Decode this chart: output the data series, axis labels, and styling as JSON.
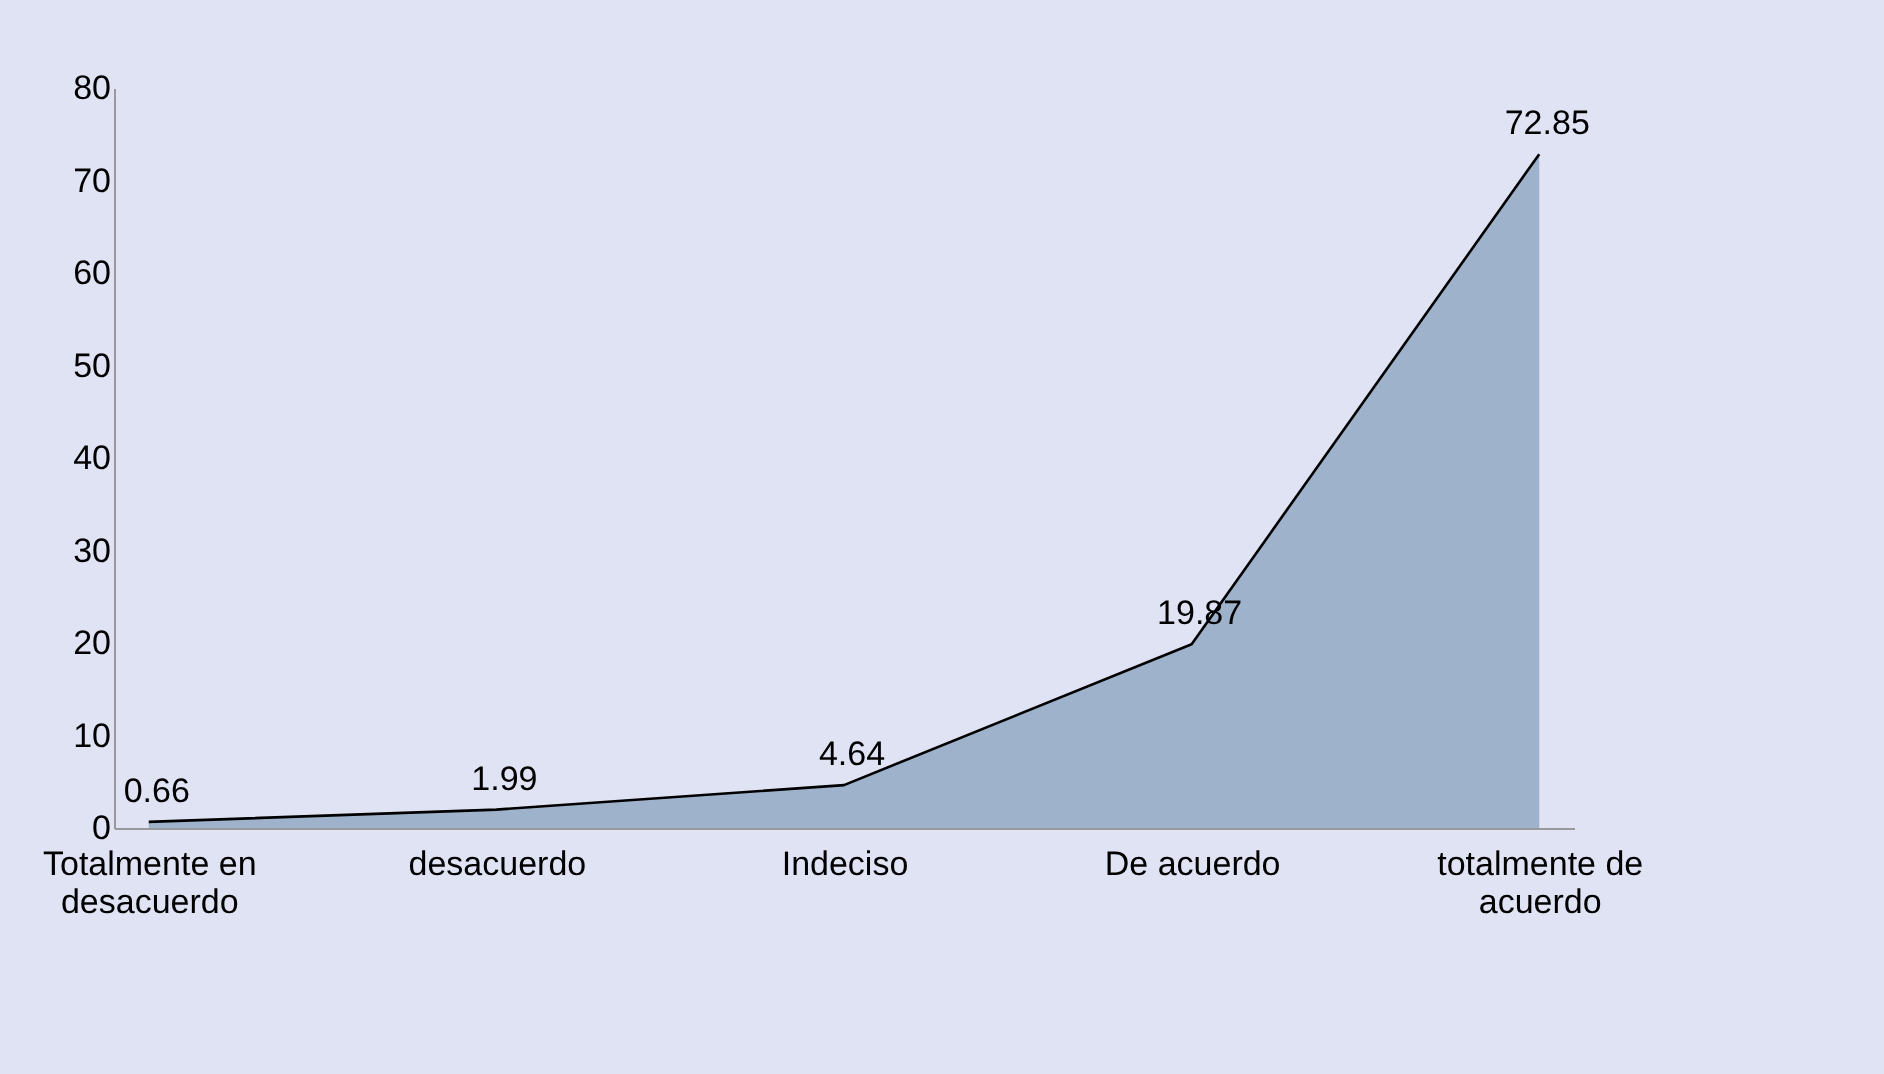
{
  "chart_data": {
    "type": "area",
    "categories": [
      "Totalmente en desacuerdo",
      "desacuerdo",
      "Indeciso",
      "De acuerdo",
      "totalmente de acuerdo"
    ],
    "series": [
      {
        "color": "#9fb2cc",
        "values": [
          0.66,
          1.99,
          4.64,
          19.87,
          72.85
        ]
      }
    ],
    "ylim": [
      0,
      80
    ],
    "yticks": [
      0,
      10,
      20,
      30,
      40,
      50,
      60,
      70,
      80
    ],
    "data_labels": true,
    "grid": false
  }
}
